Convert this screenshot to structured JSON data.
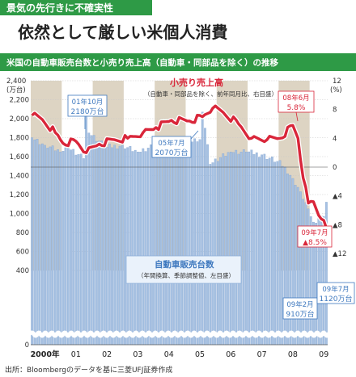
{
  "header": {
    "kicker": "景気の先行きに不確実性",
    "headline": "依然として厳しい米個人消費",
    "chart_title": "米国の自動車販売台数と小売り売上高（自動車・同部品を除く）の推移"
  },
  "source": "出所：Bloombergのデータを基に三菱UFJ証券作成",
  "colors": {
    "green": "#2e9a46",
    "bars": "#a6c1e2",
    "bar_stroke": "#7f9fcc",
    "line": "#d9263a",
    "band": "#ddd4c3",
    "blue_label": "#3f79bf",
    "red_label": "#d9263a"
  },
  "axes": {
    "left_unit": "(万台)",
    "right_unit": "(%)",
    "left_ticks": [
      "2,400",
      "2,200",
      "2,000",
      "1,800",
      "1,600",
      "1,400",
      "1,200",
      "1,000",
      "800",
      "600",
      "400",
      "0"
    ],
    "right_ticks": [
      "12",
      "8",
      "4",
      "0",
      "▲4",
      "▲8",
      "▲12"
    ],
    "x_ticks": [
      "2000年",
      "01",
      "02",
      "03",
      "04",
      "05",
      "06",
      "07",
      "08",
      "09"
    ]
  },
  "legend": {
    "retail_title": "小売り売上高",
    "retail_sub": "（自動車・同部品を除く、前年同月比、右目盛）",
    "auto_title": "自動車販売台数",
    "auto_sub1": "（年間換算、季節調整値、左目盛）"
  },
  "annotations": [
    {
      "id": "a0110",
      "line1": "01年10月",
      "line2": "2180万台",
      "color": "blue"
    },
    {
      "id": "a0507",
      "line1": "05年7月",
      "line2": "2070万台",
      "color": "blue"
    },
    {
      "id": "a0806",
      "line1": "08年6月",
      "line2": "5.8%",
      "color": "red"
    },
    {
      "id": "a0907r",
      "line1": "09年7月",
      "line2": "▲8.5%",
      "color": "red"
    },
    {
      "id": "a0902",
      "line1": "09年2月",
      "line2": "910万台",
      "color": "blue"
    },
    {
      "id": "a0907b",
      "line1": "09年7月",
      "line2": "1120万台",
      "color": "blue"
    }
  ],
  "chart_data": {
    "type": "bar+line",
    "x_range": [
      "2000-01",
      "2009-07"
    ],
    "left_axis": {
      "label": "(万台)",
      "ylim": [
        0,
        2400
      ],
      "broken_below": 400
    },
    "right_axis": {
      "label": "(%)",
      "ylim": [
        -12,
        12
      ]
    },
    "series": [
      {
        "name": "自動車販売台数",
        "axis": "left",
        "type": "bar",
        "note": "年間換算、季節調整値",
        "keypoints": [
          [
            "2000-01",
            1800
          ],
          [
            "2000-06",
            1720
          ],
          [
            "2000-12",
            1650
          ],
          [
            "2001-03",
            1690
          ],
          [
            "2001-09",
            1580
          ],
          [
            "2001-10",
            2180
          ],
          [
            "2001-11",
            1850
          ],
          [
            "2002-06",
            1700
          ],
          [
            "2002-12",
            1720
          ],
          [
            "2003-06",
            1650
          ],
          [
            "2003-12",
            1720
          ],
          [
            "2004-06",
            1690
          ],
          [
            "2004-12",
            1720
          ],
          [
            "2005-06",
            1780
          ],
          [
            "2005-07",
            2070
          ],
          [
            "2005-08",
            1900
          ],
          [
            "2005-10",
            1520
          ],
          [
            "2006-06",
            1650
          ],
          [
            "2006-12",
            1650
          ],
          [
            "2007-06",
            1620
          ],
          [
            "2007-12",
            1550
          ],
          [
            "2008-03",
            1490
          ],
          [
            "2008-06",
            1370
          ],
          [
            "2008-09",
            1230
          ],
          [
            "2008-12",
            1050
          ],
          [
            "2009-02",
            910
          ],
          [
            "2009-04",
            950
          ],
          [
            "2009-06",
            970
          ],
          [
            "2009-07",
            1120
          ]
        ]
      },
      {
        "name": "小売り売上高",
        "axis": "right",
        "type": "line",
        "note": "自動車・同部品を除く、前年同月比",
        "keypoints": [
          [
            "2000-01",
            7.2
          ],
          [
            "2000-05",
            6.6
          ],
          [
            "2000-10",
            4.8
          ],
          [
            "2001-01",
            3.3
          ],
          [
            "2001-06",
            3.6
          ],
          [
            "2001-10",
            2.0
          ],
          [
            "2002-03",
            3.2
          ],
          [
            "2002-09",
            3.8
          ],
          [
            "2003-02",
            4.0
          ],
          [
            "2003-08",
            4.8
          ],
          [
            "2004-01",
            5.5
          ],
          [
            "2004-07",
            6.5
          ],
          [
            "2005-02",
            6.4
          ],
          [
            "2005-07",
            7.0
          ],
          [
            "2005-11",
            8.2
          ],
          [
            "2006-03",
            7.6
          ],
          [
            "2006-09",
            6.0
          ],
          [
            "2007-02",
            4.0
          ],
          [
            "2007-08",
            3.8
          ],
          [
            "2008-01",
            4.0
          ],
          [
            "2008-06",
            5.8
          ],
          [
            "2008-08",
            4.0
          ],
          [
            "2008-10",
            -1.5
          ],
          [
            "2008-12",
            -5.0
          ],
          [
            "2009-02",
            -4.8
          ],
          [
            "2009-05",
            -7.2
          ],
          [
            "2009-07",
            -8.5
          ]
        ]
      }
    ],
    "recession_like_bands": [
      [
        "2000-01",
        "2000-12"
      ],
      [
        "2002-01",
        "2002-12"
      ],
      [
        "2004-01",
        "2004-12"
      ],
      [
        "2006-01",
        "2006-12"
      ],
      [
        "2008-01",
        "2008-12"
      ]
    ]
  }
}
